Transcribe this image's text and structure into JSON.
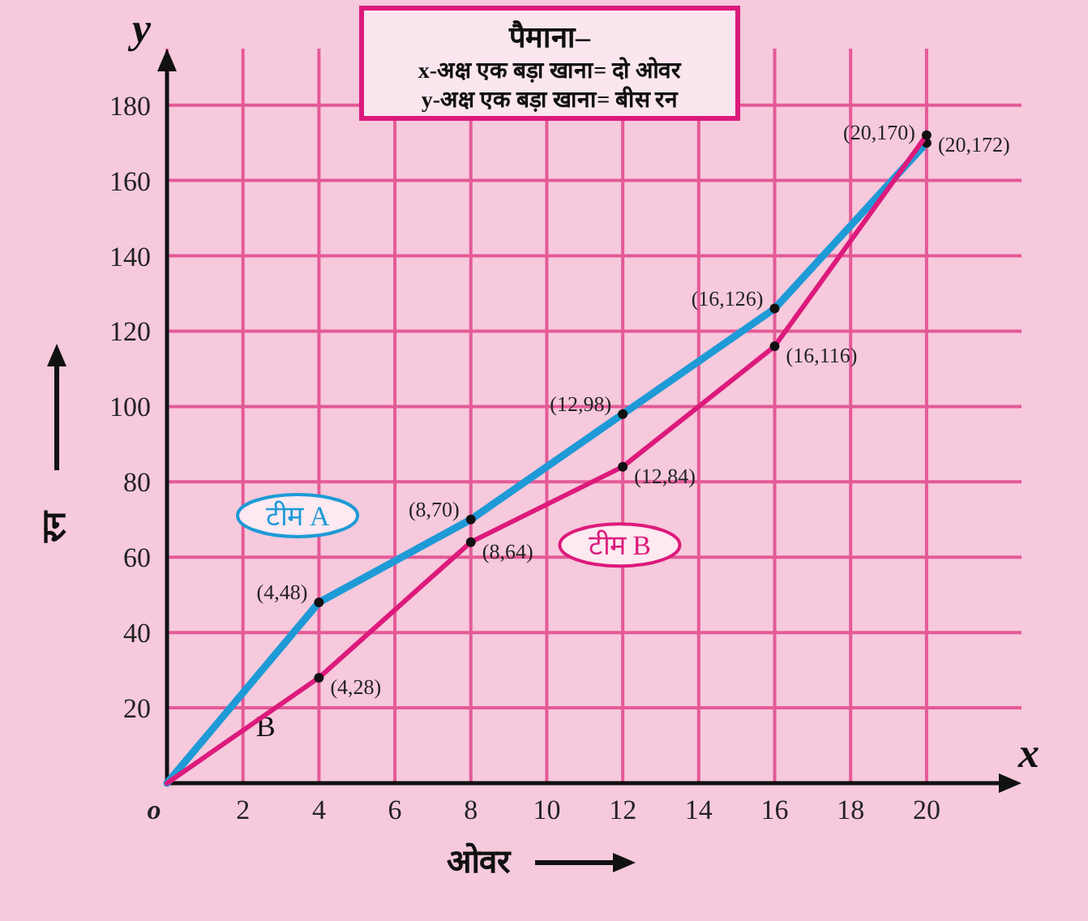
{
  "chart_data": {
    "type": "line",
    "title": "पैमाना–",
    "annotations": [
      "x-अक्ष  एक बड़ा खाना= दो ओवर",
      "y-अक्ष  एक बड़ा खाना= बीस रन",
      "x",
      "y",
      {
        "text": "B",
        "x": 2.6,
        "y": 15
      },
      {
        "text": "(4,48)",
        "x": 4,
        "y": 48
      },
      {
        "text": "(8,70)",
        "x": 8,
        "y": 70
      },
      {
        "text": "(12,98)",
        "x": 12,
        "y": 98
      },
      {
        "text": "(16,126)",
        "x": 16,
        "y": 126
      },
      {
        "text": "(20,170)",
        "x": 20,
        "y": 170
      },
      {
        "text": "(4,28)",
        "x": 4,
        "y": 28
      },
      {
        "text": "(8,64)",
        "x": 8,
        "y": 64
      },
      {
        "text": "(12,84)",
        "x": 12,
        "y": 84
      },
      {
        "text": "(16,116)",
        "x": 16,
        "y": 116
      },
      {
        "text": "(20,172)",
        "x": 20,
        "y": 172
      }
    ],
    "xlabel": "ओवर",
    "ylabel": "रन",
    "x": [
      0,
      4,
      8,
      12,
      16,
      20
    ],
    "series": [
      {
        "name": "टीम A",
        "color": "#1e9ad6",
        "values": [
          0,
          48,
          70,
          98,
          126,
          170
        ]
      },
      {
        "name": "टीम B",
        "color": "#dd1a7c",
        "values": [
          0,
          28,
          64,
          84,
          116,
          172
        ]
      }
    ],
    "xlim": [
      0,
      22.5
    ],
    "ylim": [
      0,
      195
    ],
    "xticks": [
      {
        "value": 0,
        "label": "o"
      },
      2,
      4,
      6,
      8,
      10,
      12,
      14,
      16,
      18,
      20
    ],
    "yticks": [
      20,
      40,
      60,
      80,
      100,
      120,
      140,
      160,
      180
    ],
    "grid": true,
    "marker": "circle",
    "line_style": "solid",
    "legend": false
  }
}
